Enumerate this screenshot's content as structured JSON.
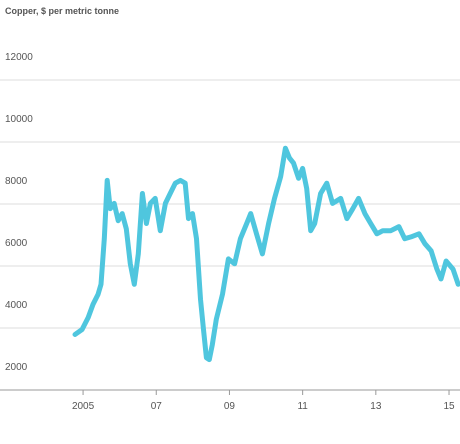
{
  "chart_data": {
    "type": "line",
    "y_label": "Copper, $ per metric tonne",
    "x": [
      2004.78,
      2004.97,
      2005.14,
      2005.27,
      2005.41,
      2005.49,
      2005.58,
      2005.66,
      2005.74,
      2005.85,
      2005.96,
      2006.07,
      2006.18,
      2006.29,
      2006.4,
      2006.51,
      2006.62,
      2006.73,
      2006.84,
      2006.97,
      2007.11,
      2007.25,
      2007.38,
      2007.52,
      2007.66,
      2007.79,
      2007.88,
      2007.99,
      2008.1,
      2008.21,
      2008.29,
      2008.37,
      2008.45,
      2008.53,
      2008.64,
      2008.81,
      2008.97,
      2009.14,
      2009.3,
      2009.47,
      2009.58,
      2009.74,
      2009.9,
      2010.07,
      2010.23,
      2010.4,
      2010.53,
      2010.64,
      2010.75,
      2010.89,
      2011.0,
      2011.11,
      2011.22,
      2011.33,
      2011.49,
      2011.66,
      2011.82,
      2012.04,
      2012.21,
      2012.37,
      2012.53,
      2012.7,
      2012.86,
      2013.03,
      2013.19,
      2013.41,
      2013.63,
      2013.79,
      2013.96,
      2014.18,
      2014.34,
      2014.51,
      2014.67,
      2014.78,
      2014.92,
      2015.11,
      2015.25
    ],
    "values": [
      3790,
      3950,
      4340,
      4760,
      5090,
      5410,
      6880,
      8760,
      7850,
      8020,
      7460,
      7690,
      7200,
      6070,
      5410,
      6390,
      8340,
      7370,
      8020,
      8180,
      7140,
      8020,
      8340,
      8670,
      8760,
      8670,
      7530,
      7690,
      6880,
      4930,
      3950,
      3040,
      2980,
      3460,
      4280,
      5090,
      6230,
      6070,
      6880,
      7370,
      7690,
      7040,
      6390,
      7370,
      8180,
      8890,
      9800,
      9480,
      9320,
      8830,
      9150,
      8500,
      7140,
      7370,
      8340,
      8670,
      8020,
      8180,
      7530,
      7850,
      8180,
      7690,
      7370,
      7040,
      7140,
      7140,
      7270,
      6880,
      6940,
      7040,
      6720,
      6490,
      5900,
      5580,
      6160,
      5900,
      5410
    ],
    "color": "#4fc6de",
    "xlim": [
      2002.73,
      2015.3
    ],
    "xticks": [
      2005,
      {
        "value": 2007,
        "label": "07"
      },
      {
        "value": 2009,
        "label": "09"
      },
      {
        "value": 2011,
        "label": "11"
      },
      {
        "value": 2013,
        "label": "13"
      },
      {
        "value": 2015,
        "label": "15"
      }
    ],
    "ylim": [
      2000,
      12000
    ],
    "yticks": [
      2000,
      4000,
      6000,
      8000,
      10000,
      12000
    ],
    "grid": true
  }
}
